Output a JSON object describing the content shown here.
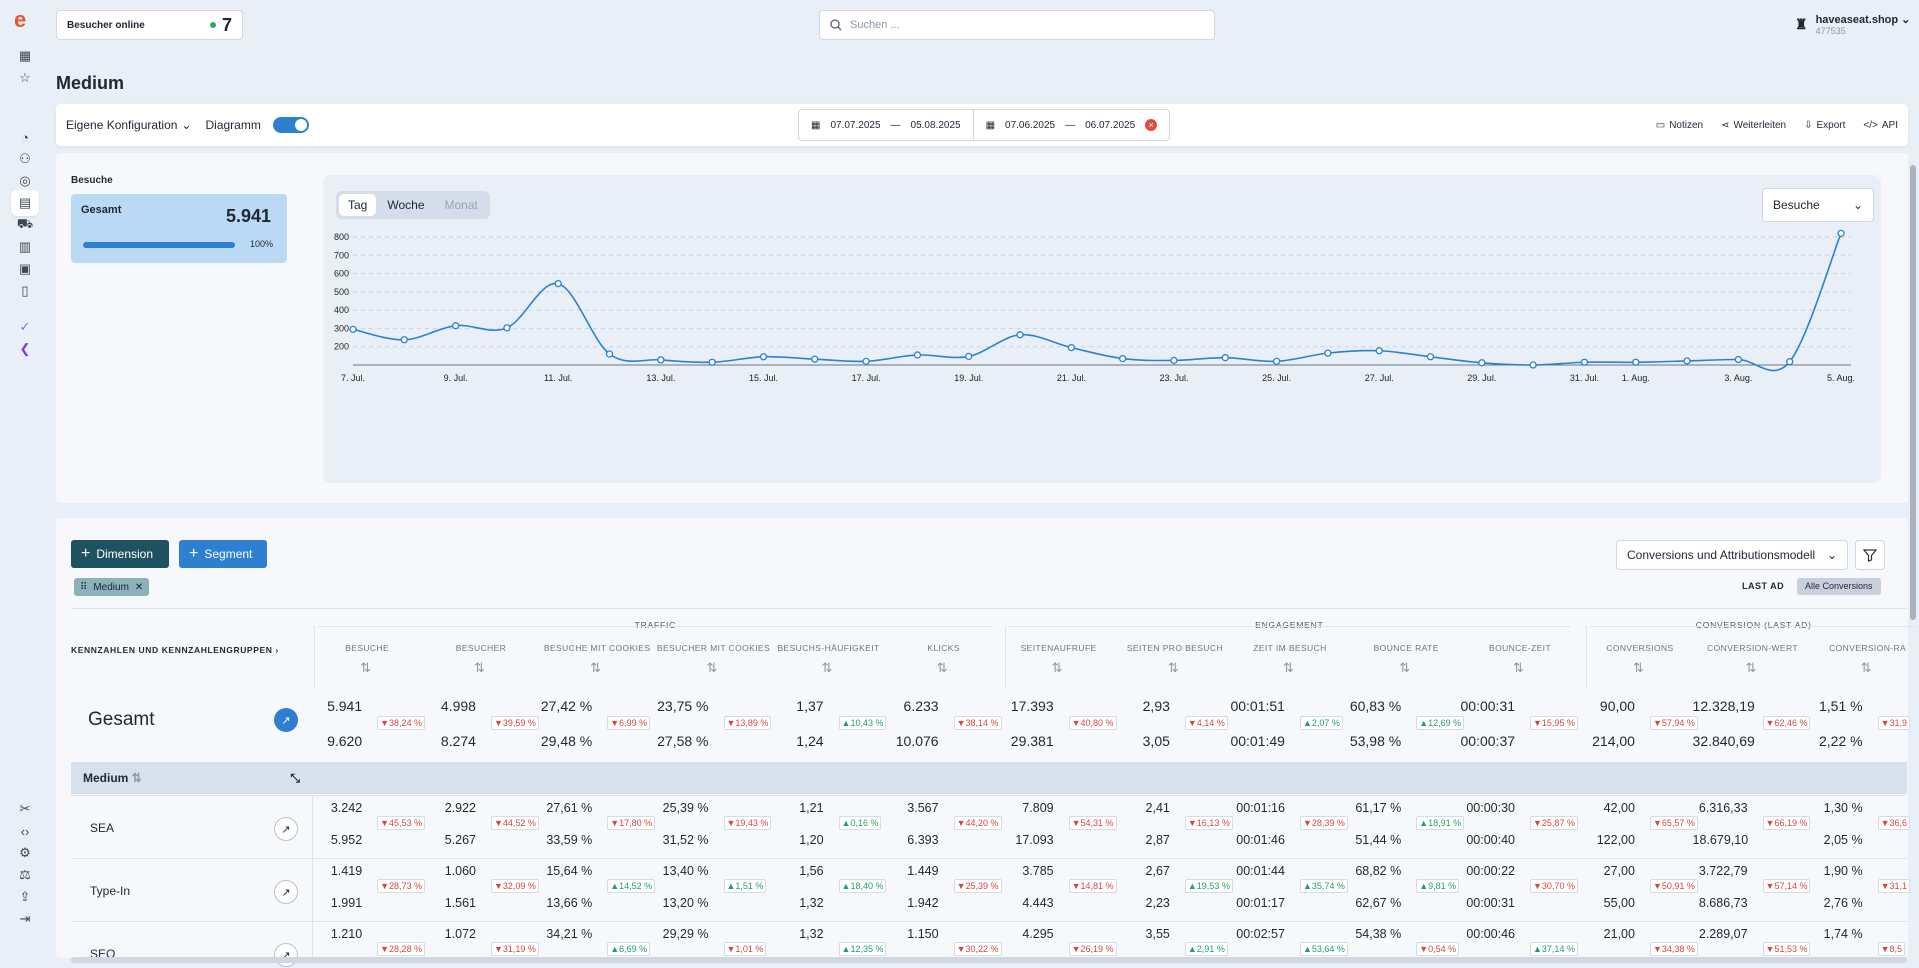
{
  "app": {
    "logo": "e"
  },
  "header": {
    "online_label": "Besucher online",
    "online_count": "7",
    "search_placeholder": "Suchen ...",
    "shop_name": "haveaseat.shop",
    "shop_id": "477535"
  },
  "page": {
    "title": "Medium"
  },
  "toolbar": {
    "config_label": "Eigene Konfiguration",
    "chart_toggle_label": "Diagramm",
    "chart_toggle_on": true,
    "range1_from": "07.07.2025",
    "range1_to": "05.08.2025",
    "range2_from": "07.06.2025",
    "range2_to": "06.07.2025",
    "range_sep": "—",
    "actions": [
      "Notizen",
      "Weiterleiten",
      "Export",
      "API"
    ]
  },
  "summary": {
    "section_label": "Besuche",
    "card_title": "Gesamt",
    "card_value": "5.941",
    "card_percent": "100%",
    "card_fill": 1.0
  },
  "chart_controls": {
    "tabs": [
      "Tag",
      "Woche",
      "Monat"
    ],
    "active_tab": "Tag",
    "metric_select": "Besuche"
  },
  "chart_data": {
    "type": "line",
    "x": [
      "7. Jul.",
      "8. Jul.",
      "9. Jul.",
      "10. Jul.",
      "11. Jul.",
      "12. Jul.",
      "13. Jul.",
      "14. Jul.",
      "15. Jul.",
      "16. Jul.",
      "17. Jul.",
      "18. Jul.",
      "19. Jul.",
      "20. Jul.",
      "21. Jul.",
      "22. Jul.",
      "23. Jul.",
      "24. Jul.",
      "25. Jul.",
      "26. Jul.",
      "27. Jul.",
      "28. Jul.",
      "29. Jul.",
      "30. Jul.",
      "31. Jul.",
      "1. Aug.",
      "2. Aug.",
      "3. Aug.",
      "4. Aug.",
      "5. Aug."
    ],
    "tick_labels": [
      "7. Jul.",
      "9. Jul.",
      "11. Jul.",
      "13. Jul.",
      "15. Jul.",
      "17. Jul.",
      "19. Jul.",
      "21. Jul.",
      "23. Jul.",
      "25. Jul.",
      "27. Jul.",
      "29. Jul.",
      "31. Jul.",
      "1. Aug.",
      "3. Aug.",
      "5. Aug."
    ],
    "series": [
      {
        "values": [
          295,
          238,
          315,
          303,
          545,
          160,
          128,
          115,
          145,
          132,
          120,
          155,
          147,
          265,
          195,
          135,
          125,
          140,
          120,
          165,
          178,
          145,
          112,
          100,
          115,
          115,
          122,
          130,
          118,
          820
        ]
      }
    ],
    "ylim": [
      100,
      800
    ],
    "yticks": [
      200,
      300,
      400,
      500,
      600,
      700,
      800
    ],
    "grid": true,
    "line_color": "#2f7fd1"
  },
  "table_controls": {
    "dimension_button": "Dimension",
    "segment_button": "Segment",
    "chip_label": "Medium",
    "conversion_select": "Conversions und Attributionsmodell",
    "last_ad": "LAST AD",
    "all_conversions": "Alle Conversions"
  },
  "table": {
    "metrics_label": "KENNZAHLEN UND KENNZAHLENGRUPPEN",
    "groups": [
      "TRAFFIC",
      "ENGAGEMENT",
      "CONVERSION (LAST AD)"
    ],
    "columns": [
      "BESUCHE",
      "BESUCHER",
      "BESUCHE MIT COOKIES",
      "BESUCHER MIT COOKIES",
      "BESUCHS-HÄUFIGKEIT",
      "KLICKS",
      "SEITENAUFRUFE",
      "SEITEN PRO BESUCH",
      "ZEIT IM BESUCH",
      "BOUNCE RATE",
      "BOUNCE-ZEIT",
      "CONVERSIONS",
      "CONVERSION-WERT",
      "CONVERSION-RA"
    ],
    "total": {
      "label": "Gesamt",
      "current": [
        "5.941",
        "4.998",
        "27,42 %",
        "23,75 %",
        "1,37",
        "6.233",
        "17.393",
        "2,93",
        "00:01:51",
        "60,83 %",
        "00:00:31",
        "90,00",
        "12.328,19",
        "1,51 %"
      ],
      "previous": [
        "9.620",
        "8.274",
        "29,48 %",
        "27,58 %",
        "1,24",
        "10.076",
        "29.381",
        "3,05",
        "00:01:49",
        "53,98 %",
        "00:00:37",
        "214,00",
        "32.840,69",
        "2,22 %"
      ],
      "changes": [
        "38,24 %",
        "39,59 %",
        "6,99 %",
        "13,89 %",
        "10,43 %",
        "38,14 %",
        "40,80 %",
        "4,14 %",
        "2,07 %",
        "12,69 %",
        "15,95 %",
        "57,94 %",
        "62,46 %",
        "31,9"
      ],
      "dirs": [
        "dn",
        "dn",
        "dn",
        "dn",
        "up",
        "dn",
        "dn",
        "dn",
        "up",
        "up",
        "dn",
        "dn",
        "dn",
        "dn"
      ]
    },
    "dim_header": "Medium",
    "rows": [
      {
        "label": "SEA",
        "current": [
          "3.242",
          "2.922",
          "27,61 %",
          "25,39 %",
          "1,21",
          "3.567",
          "7.809",
          "2,41",
          "00:01:16",
          "61,17 %",
          "00:00:30",
          "42,00",
          "6.316,33",
          "1,30 %"
        ],
        "previous": [
          "5.952",
          "5.267",
          "33,59 %",
          "31,52 %",
          "1,20",
          "6.393",
          "17.093",
          "2,87",
          "00:01:46",
          "51,44 %",
          "00:00:40",
          "122,00",
          "18.679,10",
          "2,05 %"
        ],
        "changes": [
          "45,53 %",
          "44,52 %",
          "17,80 %",
          "19,43 %",
          "0,16 %",
          "44,20 %",
          "54,31 %",
          "16,13 %",
          "28,39 %",
          "18,91 %",
          "25,87 %",
          "65,57 %",
          "66,19 %",
          "36,6"
        ],
        "dirs": [
          "dn",
          "dn",
          "dn",
          "dn",
          "up",
          "dn",
          "dn",
          "dn",
          "dn",
          "up",
          "dn",
          "dn",
          "dn",
          "dn"
        ]
      },
      {
        "label": "Type-In",
        "current": [
          "1.419",
          "1.060",
          "15,64 %",
          "13,40 %",
          "1,56",
          "1.449",
          "3.785",
          "2,67",
          "00:01:44",
          "68,82 %",
          "00:00:22",
          "27,00",
          "3.722,79",
          "1,90 %"
        ],
        "previous": [
          "1.991",
          "1.561",
          "13,66 %",
          "13,20 %",
          "1,32",
          "1.942",
          "4.443",
          "2,23",
          "00:01:17",
          "62,67 %",
          "00:00:31",
          "55,00",
          "8.686,73",
          "2,76 %"
        ],
        "changes": [
          "28,73 %",
          "32,09 %",
          "14,52 %",
          "1,51 %",
          "18,40 %",
          "25,39 %",
          "14,81 %",
          "19,53 %",
          "35,74 %",
          "9,81 %",
          "30,70 %",
          "50,91 %",
          "57,14 %",
          "31,1"
        ],
        "dirs": [
          "dn",
          "dn",
          "up",
          "up",
          "up",
          "dn",
          "dn",
          "up",
          "up",
          "up",
          "dn",
          "dn",
          "dn",
          "dn"
        ]
      },
      {
        "label": "SEO",
        "current": [
          "1.210",
          "1.072",
          "34,21 %",
          "29,29 %",
          "1,32",
          "1.150",
          "4.295",
          "3,55",
          "00:02:57",
          "54,38 %",
          "00:00:46",
          "21,00",
          "2.289,07",
          "1,74 %"
        ],
        "previous": [
          "",
          "",
          "",
          "",
          "",
          "",
          "",
          "",
          "",
          "",
          "",
          "",
          "",
          ""
        ],
        "changes": [
          "28,28 %",
          "31,19 %",
          "6,69 %",
          "1,01 %",
          "12,35 %",
          "30,22 %",
          "26,19 %",
          "2,91 %",
          "53,64 %",
          "0,54 %",
          "37,14 %",
          "34,38 %",
          "51,53 %",
          "8,5"
        ],
        "dirs": [
          "dn",
          "dn",
          "up",
          "dn",
          "up",
          "dn",
          "dn",
          "up",
          "up",
          "dn",
          "up",
          "dn",
          "dn",
          "dn"
        ]
      }
    ]
  }
}
